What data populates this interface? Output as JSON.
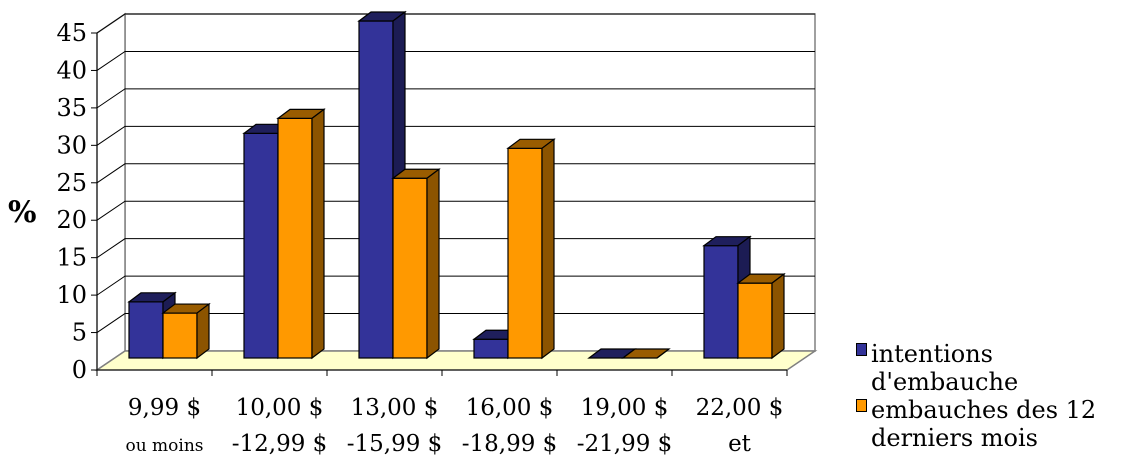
{
  "chart_data": {
    "type": "bar",
    "title": "",
    "ylabel": "%",
    "xlabel": "",
    "ylim": [
      0,
      45
    ],
    "yticks": [
      0,
      5,
      10,
      15,
      20,
      25,
      30,
      35,
      40,
      45
    ],
    "grid": true,
    "three_d": true,
    "legend_position": "bottom-right",
    "categories": [
      [
        "9,99 $",
        "ou moins"
      ],
      [
        "10,00 $",
        "-12,99 $"
      ],
      [
        "13,00 $",
        "-15,99 $"
      ],
      [
        "16,00 $",
        "-18,99 $"
      ],
      [
        "19,00 $",
        "-21,99 $"
      ],
      [
        "22,00 $",
        "et"
      ]
    ],
    "series": [
      {
        "name": "intentions d'embauche",
        "color": "#333399",
        "values": [
          7.5,
          30,
          45,
          2.5,
          0,
          15
        ]
      },
      {
        "name": "embauches des 12 derniers mois",
        "color": "#FF9900",
        "values": [
          6,
          32,
          24,
          28,
          0,
          10
        ]
      }
    ],
    "floor_color": "#FFFFCC"
  }
}
